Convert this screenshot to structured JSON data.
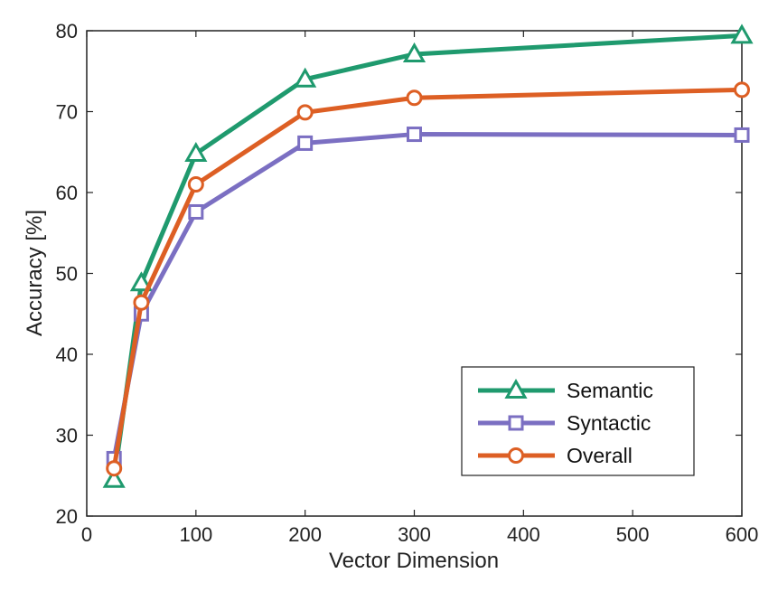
{
  "chart_data": {
    "type": "line",
    "title": "",
    "xlabel": "Vector Dimension",
    "ylabel": "Accuracy [%]",
    "xlim": [
      0,
      600
    ],
    "ylim": [
      20,
      80
    ],
    "xticks": [
      0,
      100,
      200,
      300,
      400,
      500,
      600
    ],
    "yticks": [
      20,
      30,
      40,
      50,
      60,
      70,
      80
    ],
    "grid": false,
    "legend": {
      "placement": "bottom-right"
    },
    "series": [
      {
        "name": "Semantic",
        "color": "#1f9a6e",
        "marker": "triangle",
        "x": [
          25,
          50,
          100,
          200,
          300,
          600
        ],
        "y": [
          24.5,
          48.8,
          64.8,
          74.0,
          77.1,
          79.4
        ]
      },
      {
        "name": "Syntactic",
        "color": "#7b6fc2",
        "marker": "square",
        "x": [
          25,
          50,
          100,
          200,
          300,
          600
        ],
        "y": [
          27.1,
          45.0,
          57.6,
          66.1,
          67.2,
          67.1
        ]
      },
      {
        "name": "Overall",
        "color": "#dd5f24",
        "marker": "circle",
        "x": [
          25,
          50,
          100,
          200,
          300,
          600
        ],
        "y": [
          25.9,
          46.4,
          61.0,
          69.9,
          71.7,
          72.7
        ]
      }
    ]
  }
}
